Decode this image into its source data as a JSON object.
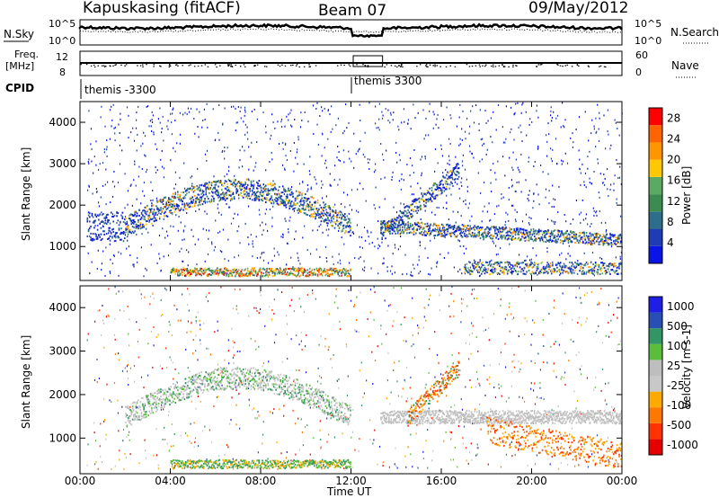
{
  "header": {
    "station": "Kapuskasing (fitACF)",
    "beam": "Beam 07",
    "date": "09/May/2012"
  },
  "top_panels": {
    "nsky_label": "N.Sky",
    "nsearch_label": "N.Search",
    "noise_ticks_left": [
      "10^5",
      "10^0"
    ],
    "noise_ticks_right": [
      "10^5",
      "10^0"
    ],
    "freq_label_line1": "Freq.",
    "freq_label_line2": "[MHz]",
    "freq_ticks": [
      "12",
      "8"
    ],
    "nave_label": "Nave",
    "nave_ticks": [
      "60",
      "0"
    ],
    "cpid_label": "CPID",
    "cpid_segments": [
      "themis -3300",
      "themis 3300"
    ]
  },
  "colors": {
    "power_scale": [
      "#0a14e6",
      "#1e3cb4",
      "#2d6e8c",
      "#3c8c50",
      "#5aaa64",
      "#ffc800",
      "#ff9600",
      "#ff6400",
      "#ff0000"
    ],
    "velocity_scale": [
      "#1e1ee6",
      "#2850b4",
      "#329664",
      "#5abe3c",
      "#bebebe",
      "#c8c8c8",
      "#ffaa00",
      "#ff7800",
      "#ff3200",
      "#e60000"
    ]
  },
  "chart_data": [
    {
      "type": "heatmap",
      "title": "",
      "xlabel": "Time UT",
      "ylabel": "Slant Range [km]",
      "x_ticks": [
        "00:00",
        "04:00",
        "08:00",
        "12:00",
        "16:00",
        "20:00",
        "00:00"
      ],
      "x_range_hours": [
        0,
        24
      ],
      "y_ticks": [
        1000,
        2000,
        3000,
        4000
      ],
      "ylim": [
        180,
        4500
      ],
      "colorbar": {
        "label": "Power [dB]",
        "ticks": [
          4,
          8,
          12,
          16,
          20,
          24,
          28
        ],
        "range": [
          0,
          30
        ]
      }
    },
    {
      "type": "heatmap",
      "title": "",
      "xlabel": "Time UT",
      "ylabel": "Slant Range [km]",
      "x_ticks": [
        "00:00",
        "04:00",
        "08:00",
        "12:00",
        "16:00",
        "20:00",
        "00:00"
      ],
      "x_range_hours": [
        0,
        24
      ],
      "y_ticks": [
        1000,
        2000,
        3000,
        4000
      ],
      "ylim": [
        180,
        4500
      ],
      "colorbar": {
        "label": "Velocity [m s-1]",
        "ticks": [
          1000,
          500,
          100,
          25,
          -25,
          -100,
          -500,
          -1000
        ]
      }
    }
  ]
}
